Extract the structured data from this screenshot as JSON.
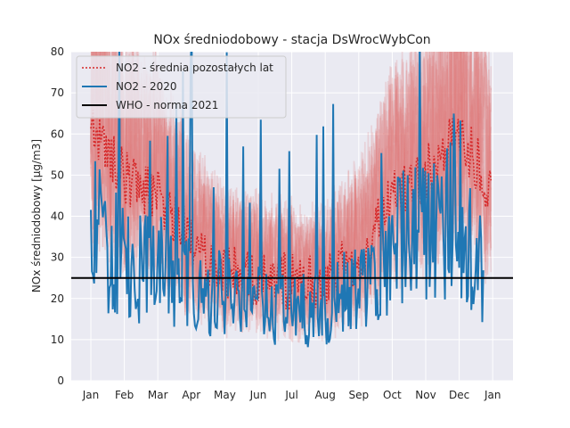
{
  "chart_data": {
    "type": "line",
    "title": "NOx średniodobowy - stacja DsWrocWybCon",
    "xlabel": "",
    "ylabel": "NOx średniodobowy [µg/m3]",
    "ylim": [
      0,
      80
    ],
    "y_ticks": [
      0,
      10,
      20,
      30,
      40,
      50,
      60,
      70,
      80
    ],
    "x_ticks": [
      "Jan",
      "Feb",
      "Mar",
      "Apr",
      "May",
      "Jun",
      "Jul",
      "Aug",
      "Sep",
      "Oct",
      "Nov",
      "Dec",
      "Jan"
    ],
    "grid": true,
    "legend_position": "top-left",
    "colors": {
      "background": "#eaeaf2",
      "grid": "#ffffff",
      "mean_other_years": "#d62728",
      "year_2020": "#1f77b4",
      "who": "#000000",
      "other_years_band": "#e07b7b"
    },
    "series": [
      {
        "name": "NO2 - średnia pozostałych lat",
        "style": "dotted",
        "monthly_level": [
          62,
          50,
          45,
          33,
          27,
          25,
          24,
          24,
          30,
          45,
          50,
          60,
          46
        ]
      },
      {
        "name": "NO2 - 2020",
        "style": "solid",
        "monthly_level": [
          40,
          30,
          28,
          25,
          22,
          20,
          18,
          18,
          25,
          35,
          40,
          45,
          20
        ]
      },
      {
        "name": "WHO - norma 2021",
        "style": "solid",
        "constant": 25
      }
    ]
  }
}
